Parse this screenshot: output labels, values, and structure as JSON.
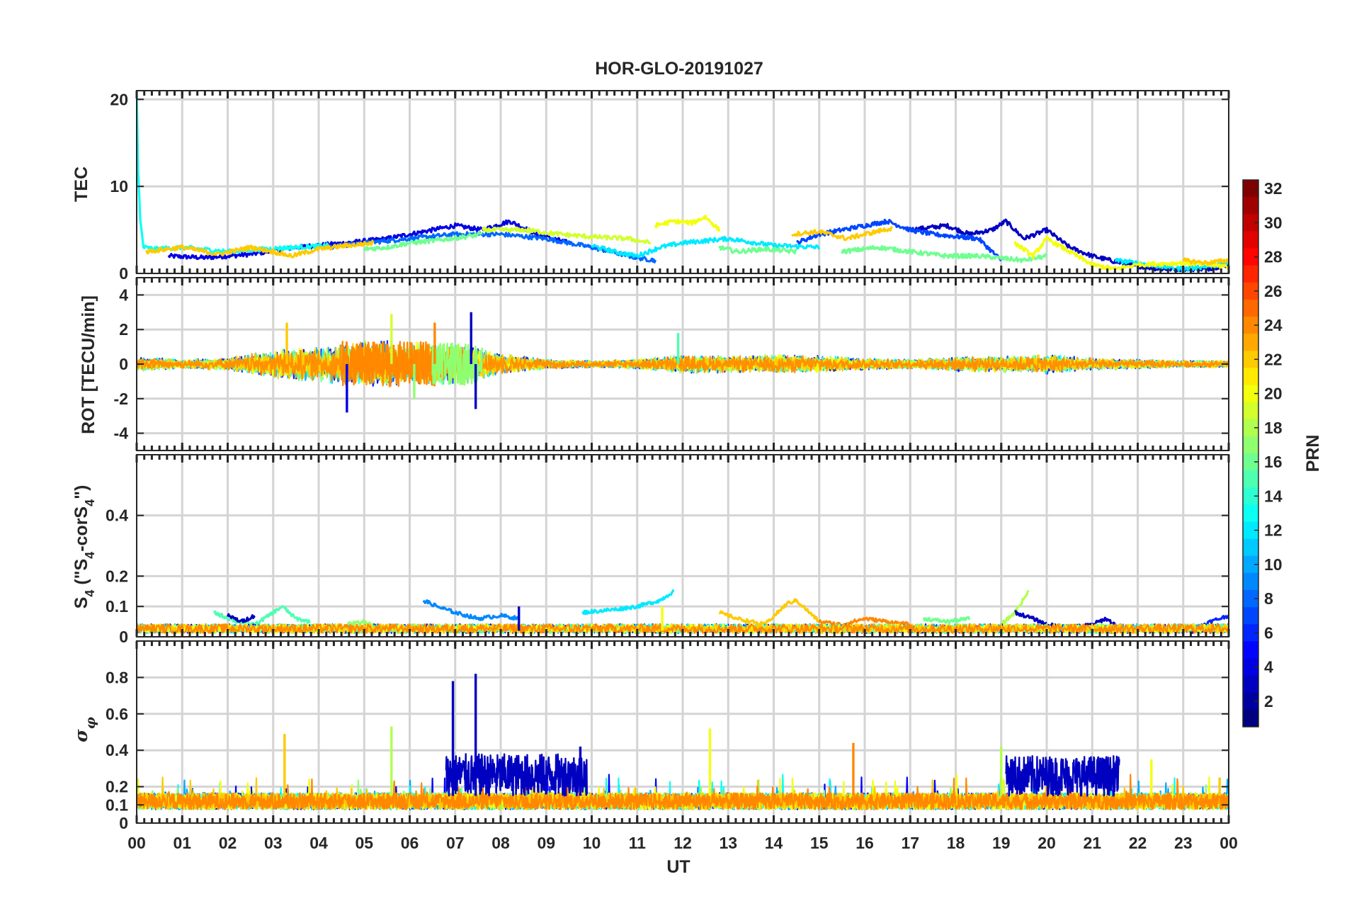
{
  "chart_data": {
    "type": "line",
    "title": "HOR-GLO-20191027",
    "xlabel": "UT",
    "x_ticks": [
      "00",
      "01",
      "02",
      "03",
      "04",
      "05",
      "06",
      "07",
      "08",
      "09",
      "10",
      "11",
      "12",
      "13",
      "14",
      "15",
      "16",
      "17",
      "18",
      "19",
      "20",
      "21",
      "22",
      "23",
      "00"
    ],
    "xlim": [
      0,
      24
    ],
    "grid": true,
    "colorbar": {
      "label": "PRN",
      "range": [
        1,
        32
      ],
      "ticks": [
        "2",
        "4",
        "6",
        "8",
        "10",
        "12",
        "14",
        "16",
        "18",
        "20",
        "22",
        "24",
        "26",
        "28",
        "30",
        "32"
      ],
      "colormap": "jet"
    },
    "panels": [
      {
        "name": "tec",
        "ylabel": "TEC",
        "ylim": [
          0,
          21
        ],
        "yticks": [
          {
            "v": 0,
            "label": "0"
          },
          {
            "v": 10,
            "label": "10"
          },
          {
            "v": 20,
            "label": "20"
          }
        ],
        "series": [
          {
            "prn": 4,
            "x": [
              0.7,
              1.5,
              2.5,
              3.5,
              4.6,
              5.5,
              6.3,
              7.0,
              7.6,
              8.2,
              8.8,
              9.5
            ],
            "y": [
              2.0,
              1.8,
              2.2,
              3.0,
              3.5,
              4.0,
              4.8,
              5.5,
              5.0,
              6.0,
              4.5,
              3.5
            ]
          },
          {
            "prn": 3,
            "x": [
              17.0,
              17.8,
              18.3,
              18.8,
              19.1,
              19.5,
              20.0,
              20.5,
              21.0,
              21.8,
              22.5,
              23.5,
              24.0
            ],
            "y": [
              5.0,
              5.5,
              4.5,
              5.0,
              6.0,
              4.0,
              5.0,
              3.0,
              2.0,
              1.0,
              0.5,
              0.5,
              1.0
            ]
          },
          {
            "prn": 8,
            "x": [
              4.2,
              5.0,
              6.0,
              7.0,
              8.0,
              9.0,
              10.0,
              11.0,
              11.4
            ],
            "y": [
              3.0,
              3.5,
              4.0,
              4.5,
              4.5,
              4.0,
              3.0,
              1.8,
              1.5
            ]
          },
          {
            "prn": 7,
            "x": [
              14.5,
              15.0,
              15.5,
              16.0,
              16.5,
              17.0,
              17.5,
              18.5,
              19.0
            ],
            "y": [
              3.5,
              4.5,
              5.0,
              5.5,
              6.0,
              5.0,
              4.5,
              4.0,
              1.5
            ]
          },
          {
            "prn": 13,
            "x": [
              0.0,
              0.03,
              0.08,
              0.15,
              0.4,
              1.0,
              2.0,
              2.8,
              3.5,
              4.2
            ],
            "y": [
              21.0,
              12.0,
              6.0,
              3.0,
              2.8,
              3.0,
              2.5,
              2.8,
              3.0,
              3.2
            ]
          },
          {
            "prn": 12,
            "x": [
              10.0,
              10.5,
              11.0,
              11.5,
              12.0,
              13.0,
              14.0,
              15.0
            ],
            "y": [
              3.2,
              2.5,
              2.0,
              3.0,
              3.5,
              4.0,
              3.2,
              3.0
            ]
          },
          {
            "prn": 12,
            "x": [
              21.5,
              22.0,
              22.5,
              23.0,
              23.5,
              24.0
            ],
            "y": [
              1.5,
              1.2,
              0.8,
              0.5,
              0.8,
              1.2
            ]
          },
          {
            "prn": 16,
            "x": [
              5.0,
              5.5,
              6.0,
              6.6,
              7.2,
              7.6
            ],
            "y": [
              2.8,
              3.0,
              3.5,
              3.8,
              4.2,
              4.5
            ]
          },
          {
            "prn": 16,
            "x": [
              12.8,
              13.2,
              13.8,
              14.5
            ],
            "y": [
              3.0,
              2.5,
              2.8,
              2.5
            ]
          },
          {
            "prn": 16,
            "x": [
              15.5,
              16.3,
              17.0,
              17.8,
              18.5,
              19.5,
              20.0
            ],
            "y": [
              2.5,
              3.0,
              2.5,
              2.0,
              2.0,
              1.5,
              2.0
            ]
          },
          {
            "prn": 19,
            "x": [
              7.6,
              8.5,
              9.3,
              10.0,
              10.8,
              11.3
            ],
            "y": [
              5.0,
              5.0,
              4.5,
              4.2,
              4.0,
              3.5
            ]
          },
          {
            "prn": 20,
            "x": [
              11.4,
              11.8,
              12.2,
              12.5,
              12.8
            ],
            "y": [
              5.5,
              6.0,
              5.8,
              6.5,
              5.0
            ]
          },
          {
            "prn": 20,
            "x": [
              19.3,
              19.7,
              20.0,
              20.5,
              21.0,
              21.5,
              22.0,
              23.0,
              24.0
            ],
            "y": [
              3.5,
              2.0,
              4.0,
              2.5,
              1.0,
              0.5,
              1.0,
              1.2,
              0.8
            ]
          },
          {
            "prn": 22,
            "x": [
              0.2,
              1.0,
              1.8,
              2.5,
              3.0,
              3.4,
              4.0,
              4.6,
              5.2
            ],
            "y": [
              2.5,
              3.0,
              2.2,
              3.0,
              2.5,
              2.0,
              2.8,
              3.2,
              3.5
            ]
          },
          {
            "prn": 22,
            "x": [
              14.4,
              15.0,
              15.6,
              16.0,
              16.6
            ],
            "y": [
              4.5,
              4.8,
              4.0,
              4.5,
              5.2
            ]
          },
          {
            "prn": 22,
            "x": [
              23.0,
              23.5,
              24.0
            ],
            "y": [
              1.5,
              1.2,
              1.5
            ]
          }
        ]
      },
      {
        "name": "rot",
        "ylabel": "ROT [TECU/min]",
        "ylim": [
          -5,
          5
        ],
        "yticks": [
          {
            "v": -4,
            "label": "-4"
          },
          {
            "v": -2,
            "label": "-2"
          },
          {
            "v": 0,
            "label": "0"
          },
          {
            "v": 2,
            "label": "2"
          },
          {
            "v": 4,
            "label": "4"
          }
        ],
        "activity": {
          "hours": [
            0,
            1,
            2,
            3,
            4,
            5,
            6,
            7,
            8,
            9,
            10,
            11,
            12,
            13,
            14,
            15,
            16,
            17,
            18,
            19,
            20,
            21,
            22,
            23,
            24
          ],
          "amplitude": [
            0.6,
            0.4,
            0.5,
            1.2,
            1.5,
            2.0,
            1.8,
            1.8,
            0.9,
            0.4,
            0.3,
            0.4,
            0.8,
            0.7,
            0.8,
            0.7,
            0.5,
            0.4,
            0.6,
            0.7,
            0.8,
            0.5,
            0.4,
            0.3,
            0.3
          ]
        },
        "spikes": [
          {
            "prn": 4,
            "x": 4.62,
            "y": -2.8
          },
          {
            "prn": 3,
            "x": 7.35,
            "y": 3.0
          },
          {
            "prn": 3,
            "x": 7.45,
            "y": -2.6
          },
          {
            "prn": 22,
            "x": 3.3,
            "y": 2.4
          },
          {
            "prn": 24,
            "x": 6.55,
            "y": 2.4
          },
          {
            "prn": 19,
            "x": 5.6,
            "y": 2.9
          },
          {
            "prn": 17,
            "x": 6.1,
            "y": -2.0
          },
          {
            "prn": 15,
            "x": 11.9,
            "y": 1.8
          }
        ]
      },
      {
        "name": "s4",
        "ylabel": "S4 (\"S4-corS4\")",
        "ylim": [
          0,
          0.6
        ],
        "yticks": [
          {
            "v": 0,
            "label": "0"
          },
          {
            "v": 0.1,
            "label": "0.1"
          },
          {
            "v": 0.2,
            "label": "0.2"
          },
          {
            "v": 0.4,
            "label": "0.4"
          }
        ],
        "series": [
          {
            "prn": 9,
            "x": [
              6.3,
              6.6,
              7.0,
              7.5,
              8.0,
              8.4
            ],
            "y": [
              0.12,
              0.1,
              0.08,
              0.06,
              0.07,
              0.06
            ]
          },
          {
            "prn": 12,
            "x": [
              9.8,
              10.5,
              11.0,
              11.5,
              11.8
            ],
            "y": [
              0.08,
              0.09,
              0.1,
              0.12,
              0.15
            ]
          },
          {
            "prn": 22,
            "x": [
              12.8,
              13.2,
              13.8,
              14.3,
              14.5,
              15.0
            ],
            "y": [
              0.08,
              0.06,
              0.04,
              0.11,
              0.12,
              0.05
            ]
          },
          {
            "prn": 24,
            "x": [
              15.0,
              15.5,
              16.0,
              16.5,
              17.0
            ],
            "y": [
              0.05,
              0.04,
              0.06,
              0.05,
              0.04
            ]
          },
          {
            "prn": 18,
            "x": [
              19.0,
              19.3,
              19.6
            ],
            "y": [
              0.04,
              0.08,
              0.15
            ]
          },
          {
            "prn": 16,
            "x": [
              17.3,
              17.8,
              18.3
            ],
            "y": [
              0.06,
              0.05,
              0.06
            ]
          },
          {
            "prn": 15,
            "x": [
              1.7,
              2.2,
              2.6,
              3.2,
              3.5,
              3.8
            ],
            "y": [
              0.08,
              0.05,
              0.04,
              0.1,
              0.06,
              0.05
            ]
          },
          {
            "prn": 3,
            "x": [
              19.3,
              19.7,
              20.0,
              20.5,
              21.0,
              21.3,
              21.6
            ],
            "y": [
              0.08,
              0.06,
              0.04,
              0.03,
              0.04,
              0.06,
              0.03
            ]
          },
          {
            "prn": 3,
            "x": [
              2.0,
              2.3,
              2.6
            ],
            "y": [
              0.07,
              0.05,
              0.07
            ]
          },
          {
            "prn": 6,
            "x": [
              23.3,
              23.6,
              24.0
            ],
            "y": [
              0.03,
              0.05,
              0.07
            ]
          },
          {
            "prn": 17,
            "x": [
              4.6,
              5.0,
              5.4
            ],
            "y": [
              0.04,
              0.05,
              0.03
            ]
          }
        ],
        "spikes": [
          {
            "prn": 3,
            "x": 8.4,
            "y": 0.1
          },
          {
            "prn": 20,
            "x": 11.55,
            "y": 0.1
          }
        ]
      },
      {
        "name": "sigma_phi",
        "ylabel": "σφ",
        "ylim": [
          0,
          1.0
        ],
        "yticks": [
          {
            "v": 0,
            "label": "0"
          },
          {
            "v": 0.1,
            "label": "0.1"
          },
          {
            "v": 0.2,
            "label": "0.2"
          },
          {
            "v": 0.4,
            "label": "0.4"
          },
          {
            "v": 0.6,
            "label": "0.6"
          },
          {
            "v": 0.8,
            "label": "0.8"
          }
        ],
        "baseline": [
          0.12,
          0.15
        ],
        "spikes": [
          {
            "prn": 3,
            "x": 6.95,
            "y": 0.78
          },
          {
            "prn": 3,
            "x": 7.45,
            "y": 0.82
          },
          {
            "prn": 3,
            "x": 9.75,
            "y": 0.42
          },
          {
            "prn": 22,
            "x": 3.25,
            "y": 0.49
          },
          {
            "prn": 20,
            "x": 12.6,
            "y": 0.52
          },
          {
            "prn": 18,
            "x": 5.6,
            "y": 0.53
          },
          {
            "prn": 24,
            "x": 15.75,
            "y": 0.44
          },
          {
            "prn": 18,
            "x": 19.0,
            "y": 0.42
          },
          {
            "prn": 20,
            "x": 22.3,
            "y": 0.35
          },
          {
            "prn": 22,
            "x": 23.8,
            "y": 0.25
          }
        ],
        "blocks": [
          {
            "prn": 3,
            "x": [
              6.8,
              9.9
            ],
            "y": [
              0.15,
              0.38
            ]
          },
          {
            "prn": 3,
            "x": [
              19.1,
              21.6
            ],
            "y": [
              0.15,
              0.37
            ]
          }
        ]
      }
    ]
  }
}
